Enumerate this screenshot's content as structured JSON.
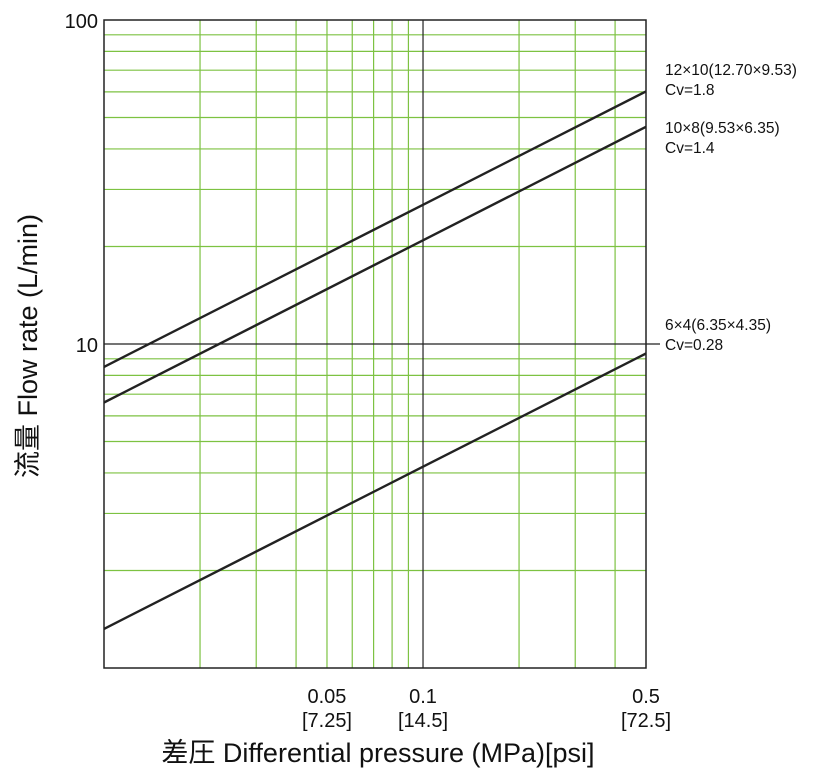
{
  "chart_data": {
    "type": "line",
    "xlabel": "差圧 Differential pressure (MPa)[psi]",
    "ylabel": "流量 Flow rate (L/min)",
    "x_scale": "log",
    "y_scale": "log",
    "xlim": [
      0.01,
      0.5
    ],
    "ylim": [
      1,
      100
    ],
    "grid": true,
    "x_ticks": [
      {
        "value": 0.05,
        "label": "0.05",
        "sub": "[7.25]"
      },
      {
        "value": 0.1,
        "label": "0.1",
        "sub": "[14.5]"
      },
      {
        "value": 0.5,
        "label": "0.5",
        "sub": "[72.5]"
      }
    ],
    "y_ticks": [
      {
        "value": 10,
        "label": "10"
      },
      {
        "value": 100,
        "label": "100"
      }
    ],
    "series": [
      {
        "name": "12×10(12.70×9.53)",
        "cv": "Cv=1.8",
        "x": [
          0.01,
          0.1,
          0.5
        ],
        "y": [
          8.5,
          26.9,
          60.2
        ]
      },
      {
        "name": "10×8(9.53×6.35)",
        "cv": "Cv=1.4",
        "x": [
          0.01,
          0.1,
          0.5
        ],
        "y": [
          6.6,
          20.9,
          46.8
        ]
      },
      {
        "name": "6×4(6.35×4.35)",
        "cv": "Cv=0.28",
        "x": [
          0.01,
          0.1,
          0.5
        ],
        "y": [
          1.32,
          4.18,
          9.35
        ]
      }
    ],
    "colors": {
      "grid_minor": "#7dc242",
      "grid_major": "#222222",
      "line": "#222222"
    }
  }
}
